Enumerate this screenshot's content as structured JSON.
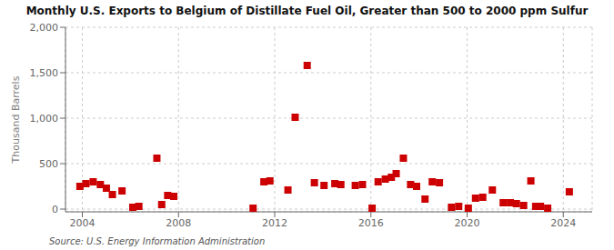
{
  "chart_data": {
    "type": "scatter",
    "title": "Monthly U.S. Exports to Belgium of Distillate Fuel Oil, Greater than 500 to 2000 ppm Sulfur",
    "ylabel": "Thousand Barrels",
    "annotations": [
      "Source: U.S. Energy Information Administration"
    ],
    "color": "#cc0000",
    "marker": "square",
    "grid": true,
    "xlim": [
      2003.3,
      2025.2
    ],
    "xticks": [
      2004,
      2008,
      2012,
      2016,
      2020,
      2024
    ],
    "ylim": [
      -30,
      2000
    ],
    "yticks": [
      0,
      500,
      {
        "value": 1000,
        "label": "1,000"
      },
      {
        "value": 1500,
        "label": "1,500"
      },
      {
        "value": 2000,
        "label": "2,000"
      }
    ],
    "x": [
      2003.9,
      2004.15,
      2004.45,
      2004.75,
      2005.0,
      2005.25,
      2005.65,
      2006.1,
      2006.35,
      2007.1,
      2007.3,
      2007.55,
      2007.8,
      2011.1,
      2011.55,
      2011.8,
      2012.55,
      2012.85,
      2013.35,
      2013.65,
      2014.05,
      2014.5,
      2014.75,
      2015.35,
      2015.65,
      2016.05,
      2016.3,
      2016.6,
      2016.85,
      2017.05,
      2017.35,
      2017.65,
      2017.9,
      2018.25,
      2018.55,
      2018.85,
      2019.35,
      2019.65,
      2020.05,
      2020.35,
      2020.65,
      2021.05,
      2021.5,
      2021.8,
      2022.05,
      2022.35,
      2022.65,
      2022.85,
      2023.05,
      2023.35,
      2024.25
    ],
    "values": [
      250,
      280,
      300,
      270,
      230,
      160,
      200,
      20,
      30,
      560,
      50,
      150,
      140,
      10,
      300,
      310,
      210,
      1010,
      1580,
      290,
      260,
      280,
      270,
      260,
      270,
      10,
      300,
      330,
      350,
      390,
      560,
      270,
      250,
      110,
      300,
      290,
      20,
      30,
      10,
      120,
      130,
      210,
      70,
      70,
      60,
      40,
      310,
      30,
      30,
      10,
      190
    ]
  }
}
